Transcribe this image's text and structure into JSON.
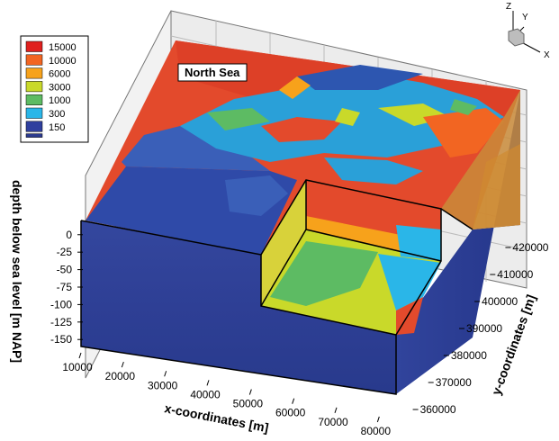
{
  "chart_data": {
    "type": "heatmap",
    "title": "",
    "annotation": "North Sea",
    "legend": {
      "placement": "top-left",
      "entries": [
        {
          "label": "15000",
          "color": "#e0201e"
        },
        {
          "label": "10000",
          "color": "#f26522"
        },
        {
          "label": "6000",
          "color": "#f7a21b"
        },
        {
          "label": "3000",
          "color": "#c9d92a"
        },
        {
          "label": "1000",
          "color": "#5dbb63"
        },
        {
          "label": "300",
          "color": "#2ab6e8"
        },
        {
          "label": "150",
          "color": "#2f3f9e"
        }
      ],
      "extra_color": "#2b3a8f"
    },
    "x_axis": {
      "label": "x-coordinates [m]",
      "ticks": [
        "10000",
        "20000",
        "30000",
        "40000",
        "50000",
        "60000",
        "70000",
        "80000"
      ],
      "range": [
        10000,
        85000
      ]
    },
    "y_axis": {
      "label": "y-coordinates [m]",
      "ticks": [
        "360000",
        "370000",
        "380000",
        "390000",
        "400000",
        "410000",
        "420000"
      ],
      "range": [
        355000,
        425000
      ]
    },
    "z_axis": {
      "label": "depth below sea level [m NAP]",
      "ticks": [
        "0",
        "-25",
        "-50",
        "-75",
        "-100",
        "-125",
        "-150"
      ],
      "range": [
        -160,
        10
      ]
    },
    "orientation_triad": {
      "x": "X",
      "y": "Y",
      "z": "Z"
    }
  }
}
